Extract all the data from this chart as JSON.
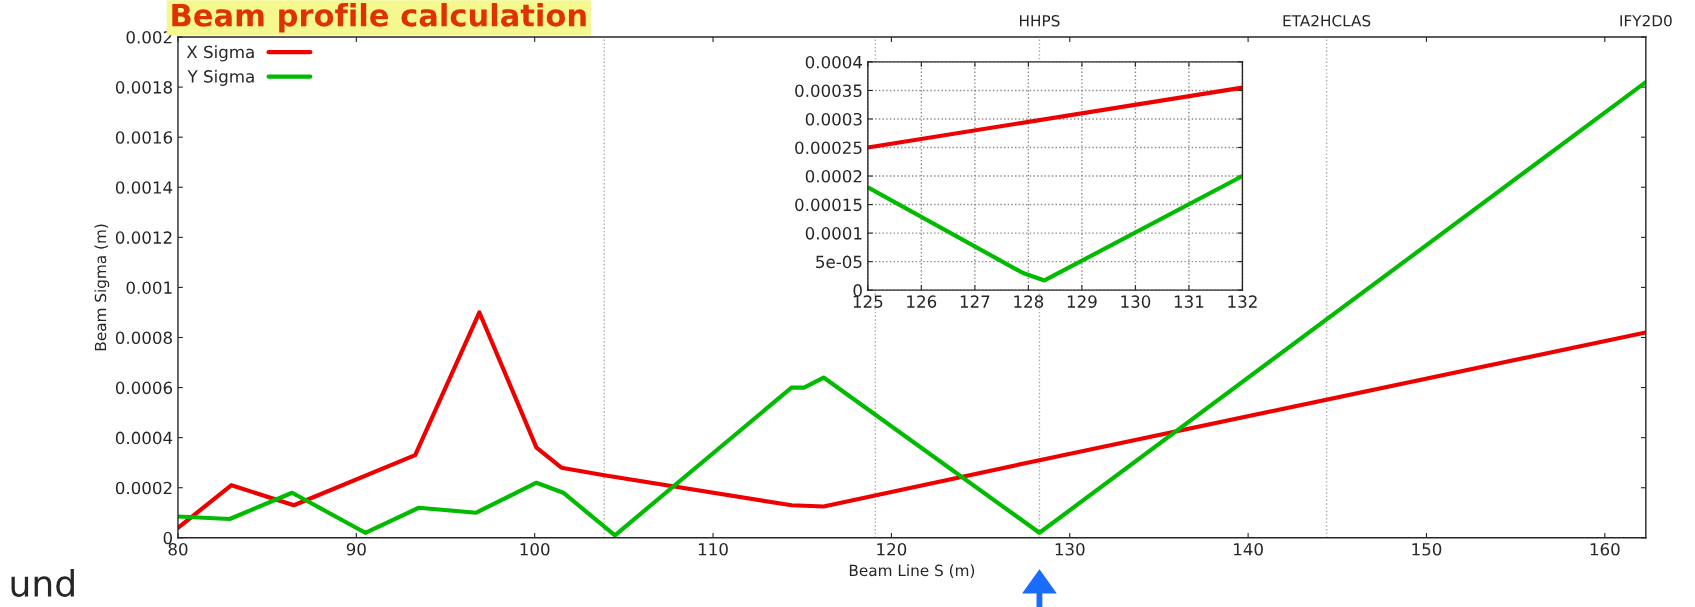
{
  "chart_data": [
    {
      "type": "line",
      "title": "Beam profile calculation",
      "xlabel": "Beam Line S (m)",
      "ylabel": "Beam Sigma (m)",
      "annotations": [
        "und"
      ],
      "xlim": [
        80,
        162.3
      ],
      "ylim": [
        0,
        0.002
      ],
      "xticks": [
        80,
        90,
        100,
        110,
        120,
        130,
        140,
        150,
        160
      ],
      "yticks": [
        0,
        0.0002,
        0.0004,
        0.0006,
        0.0008,
        0.001,
        0.0012,
        0.0014,
        0.0016,
        0.0018,
        0.002
      ],
      "legend": "top left",
      "grid": false,
      "ref_lines": [
        {
          "axis": "x",
          "value": 103.9,
          "color": "#aaaaaa",
          "line_style": "dotted"
        },
        {
          "axis": "x",
          "value": 119.1,
          "color": "#aaaaaa",
          "line_style": "dotted"
        },
        {
          "axis": "x",
          "value": 128.3,
          "label": "HHPS",
          "color": "#aaaaaa",
          "line_style": "dotted"
        },
        {
          "axis": "x",
          "value": 144.4,
          "label": "ETA2HCLAS",
          "color": "#aaaaaa",
          "line_style": "dotted"
        },
        {
          "axis": "x",
          "value": 162.3,
          "label": "IFY2D0",
          "color": "#aaaaaa",
          "line_style": "dotted"
        }
      ],
      "series": [
        {
          "name": "X Sigma",
          "color": "#ee0000",
          "x": [
            80,
            83,
            86.5,
            93.3,
            96.9,
            100.1,
            101.5,
            103.9,
            114.4,
            116.2,
            128.3,
            162.3
          ],
          "values": [
            4e-05,
            0.00021,
            0.00013,
            0.00033,
            0.0009,
            0.00036,
            0.00028,
            0.00025,
            0.00013,
            0.000125,
            0.00031,
            0.00082
          ]
        },
        {
          "name": "Y Sigma",
          "color": "#00bb00",
          "x": [
            80,
            82.9,
            86.4,
            90.5,
            93.5,
            96.7,
            100.1,
            101.6,
            104.5,
            114.4,
            115.1,
            116.2,
            128.3,
            162.3
          ],
          "values": [
            8.5e-05,
            7.5e-05,
            0.00018,
            2e-05,
            0.00012,
            0.0001,
            0.00022,
            0.00018,
            1e-05,
            0.0006,
            0.0006,
            0.00064,
            2e-05,
            0.00182
          ]
        }
      ]
    },
    {
      "type": "line",
      "xlim": [
        125,
        132
      ],
      "ylim": [
        0,
        0.0004
      ],
      "xticks": [
        125,
        126,
        127,
        128,
        129,
        130,
        131,
        132
      ],
      "yticks": [
        0,
        5e-05,
        0.0001,
        0.00015,
        0.0002,
        0.00025,
        0.0003,
        0.00035,
        0.0004
      ],
      "grid": true,
      "series": [
        {
          "color": "#ee0000",
          "x": [
            125,
            132
          ],
          "values": [
            0.00025,
            0.000355
          ]
        },
        {
          "color": "#00bb00",
          "x": [
            125,
            127.9,
            128.3,
            132
          ],
          "values": [
            0.00018,
            3e-05,
            1.7e-05,
            0.0002
          ]
        }
      ]
    }
  ]
}
